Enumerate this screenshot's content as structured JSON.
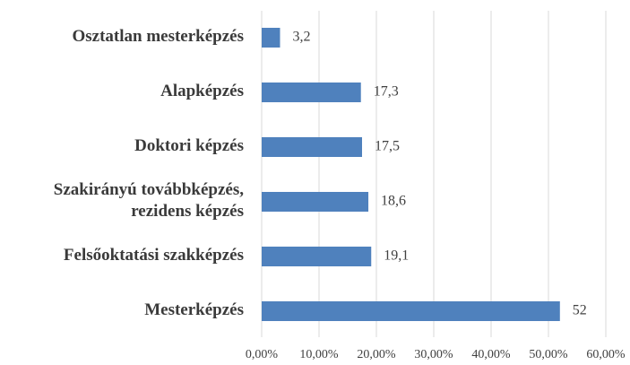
{
  "chart_data": {
    "type": "bar",
    "orientation": "horizontal",
    "categories": [
      "Osztatlan mesterképzés",
      "Alapképzés",
      "Doktori képzés",
      "Szakirányú továbbképzés,\nrezidens képzés",
      "Felsőoktatási szakképzés",
      "Mesterképzés"
    ],
    "values": [
      3.2,
      17.3,
      17.5,
      18.6,
      19.1,
      52
    ],
    "value_labels": [
      "3,2",
      "17,3",
      "17,5",
      "18,6",
      "19,1",
      "52"
    ],
    "color": "#4f81bd",
    "xlim": [
      0,
      60
    ],
    "xticks": [
      {
        "value": 0,
        "label": "0,00%"
      },
      {
        "value": 10,
        "label": "10,00%"
      },
      {
        "value": 20,
        "label": "20,00%"
      },
      {
        "value": 30,
        "label": "30,00%"
      },
      {
        "value": 40,
        "label": "40,00%"
      },
      {
        "value": 50,
        "label": "50,00%"
      },
      {
        "value": 60,
        "label": "60,00%"
      }
    ],
    "grid": true
  }
}
